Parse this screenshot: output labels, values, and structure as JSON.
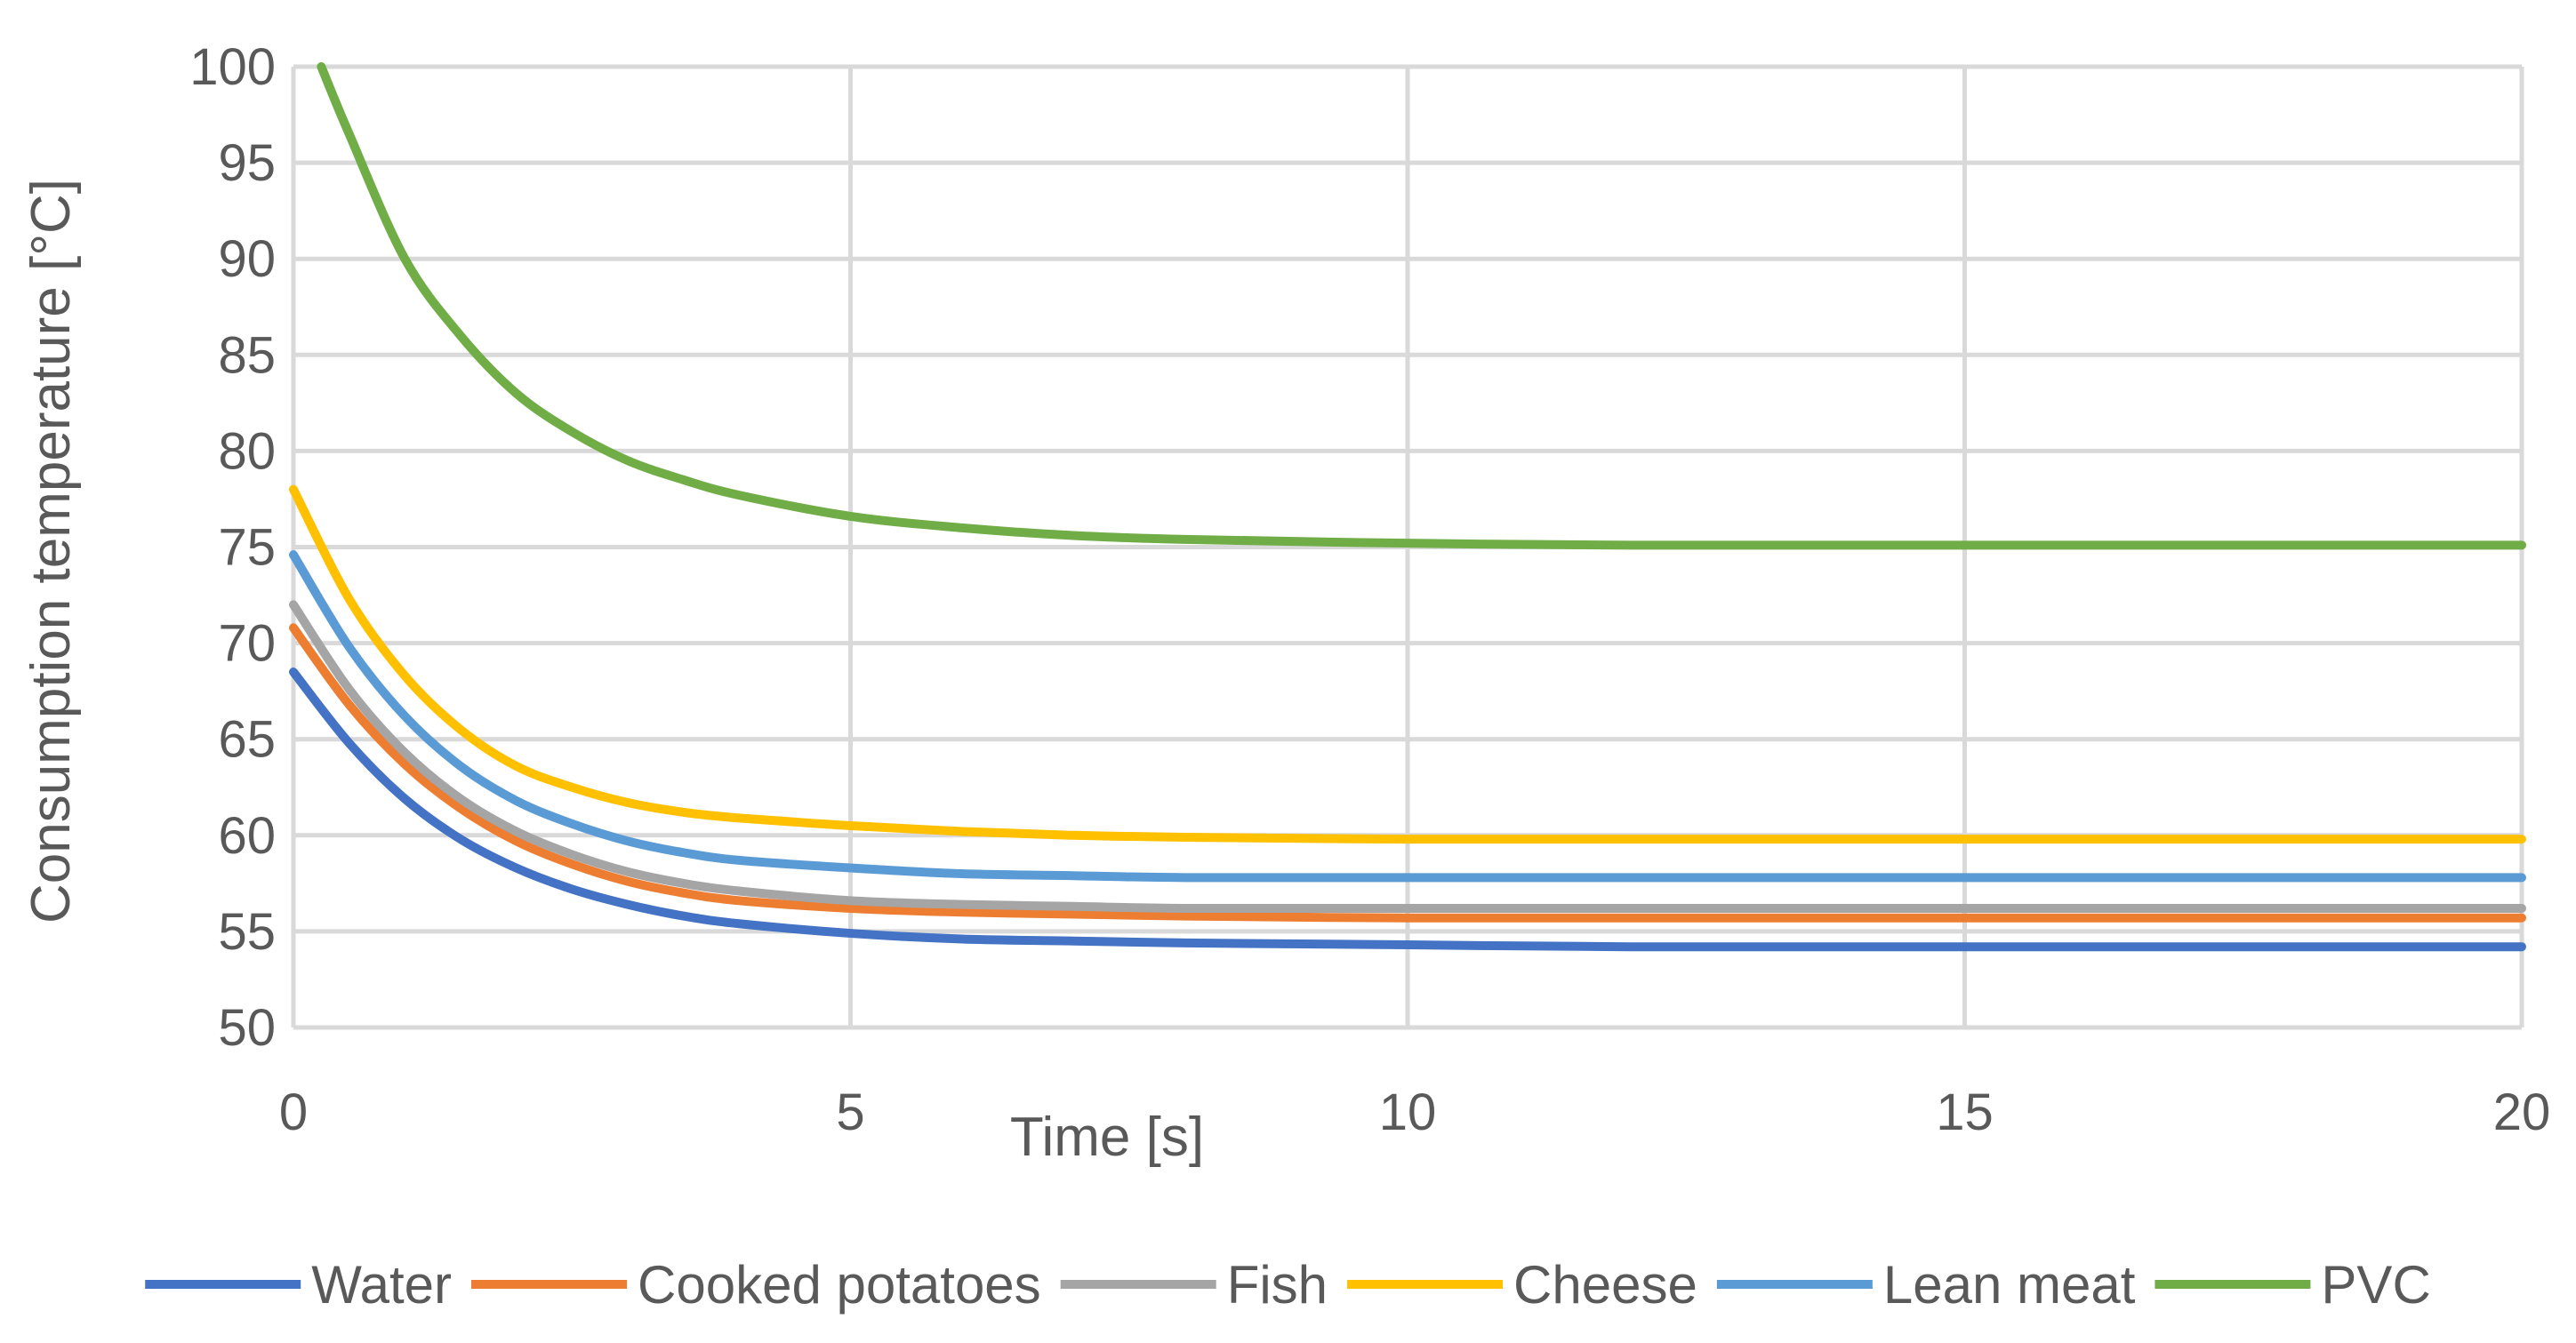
{
  "chart_data": {
    "type": "line",
    "title": "",
    "xlabel": "Time [s]",
    "ylabel": "Consumption temperature [°C]",
    "xlim": [
      0,
      20
    ],
    "ylim": [
      50,
      100
    ],
    "x_ticks": [
      0,
      5,
      10,
      15,
      20
    ],
    "y_ticks": [
      50,
      55,
      60,
      65,
      70,
      75,
      80,
      85,
      90,
      95,
      100
    ],
    "grid": true,
    "legend_position": "bottom",
    "series": [
      {
        "name": "Water",
        "color": "#4472C4",
        "x": [
          0,
          0.5,
          1,
          1.5,
          2,
          2.5,
          3,
          3.5,
          4,
          5,
          6,
          7,
          8,
          10,
          12,
          15,
          20
        ],
        "y": [
          68.5,
          64.8,
          61.9,
          59.8,
          58.3,
          57.2,
          56.4,
          55.8,
          55.4,
          54.9,
          54.6,
          54.5,
          54.4,
          54.3,
          54.2,
          54.2,
          54.2
        ]
      },
      {
        "name": "Cooked potatoes",
        "color": "#ED7D31",
        "x": [
          0,
          0.5,
          1,
          1.5,
          2,
          2.5,
          3,
          3.5,
          4,
          5,
          6,
          7,
          8,
          10,
          12,
          15,
          20
        ],
        "y": [
          70.8,
          66.8,
          63.7,
          61.4,
          59.7,
          58.5,
          57.6,
          57.0,
          56.6,
          56.2,
          56.0,
          55.9,
          55.8,
          55.7,
          55.7,
          55.7,
          55.7
        ]
      },
      {
        "name": "Fish",
        "color": "#A5A5A5",
        "x": [
          0,
          0.5,
          1,
          1.5,
          2,
          2.5,
          3,
          3.5,
          4,
          5,
          6,
          7,
          8,
          10,
          12,
          15,
          20
        ],
        "y": [
          72.0,
          67.6,
          64.3,
          61.9,
          60.2,
          59.0,
          58.1,
          57.5,
          57.1,
          56.6,
          56.4,
          56.3,
          56.2,
          56.2,
          56.2,
          56.2,
          56.2
        ]
      },
      {
        "name": "Cheese",
        "color": "#FFC000",
        "x": [
          0,
          0.5,
          1,
          1.5,
          2,
          2.5,
          3,
          3.5,
          4,
          5,
          6,
          7,
          8,
          10,
          12,
          15,
          20
        ],
        "y": [
          78.0,
          72.3,
          68.3,
          65.5,
          63.6,
          62.5,
          61.7,
          61.2,
          60.9,
          60.5,
          60.2,
          60.0,
          59.9,
          59.8,
          59.8,
          59.8,
          59.8
        ]
      },
      {
        "name": "Lean meat",
        "color": "#5B9BD5",
        "x": [
          0,
          0.5,
          1,
          1.5,
          2,
          2.5,
          3,
          3.5,
          4,
          5,
          6,
          7,
          8,
          10,
          12,
          15,
          20
        ],
        "y": [
          74.6,
          69.8,
          66.2,
          63.6,
          61.8,
          60.6,
          59.7,
          59.1,
          58.7,
          58.3,
          58.0,
          57.9,
          57.8,
          57.8,
          57.8,
          57.8,
          57.8
        ]
      },
      {
        "name": "PVC",
        "color": "#70AD47",
        "x": [
          0.25,
          0.5,
          1,
          1.5,
          2,
          2.5,
          3,
          3.5,
          4,
          5,
          6,
          7,
          8,
          10,
          12,
          15,
          20
        ],
        "y": [
          100.0,
          96.5,
          90.0,
          86.0,
          83.0,
          81.0,
          79.5,
          78.5,
          77.7,
          76.6,
          76.0,
          75.6,
          75.4,
          75.2,
          75.1,
          75.1,
          75.1
        ]
      }
    ]
  }
}
